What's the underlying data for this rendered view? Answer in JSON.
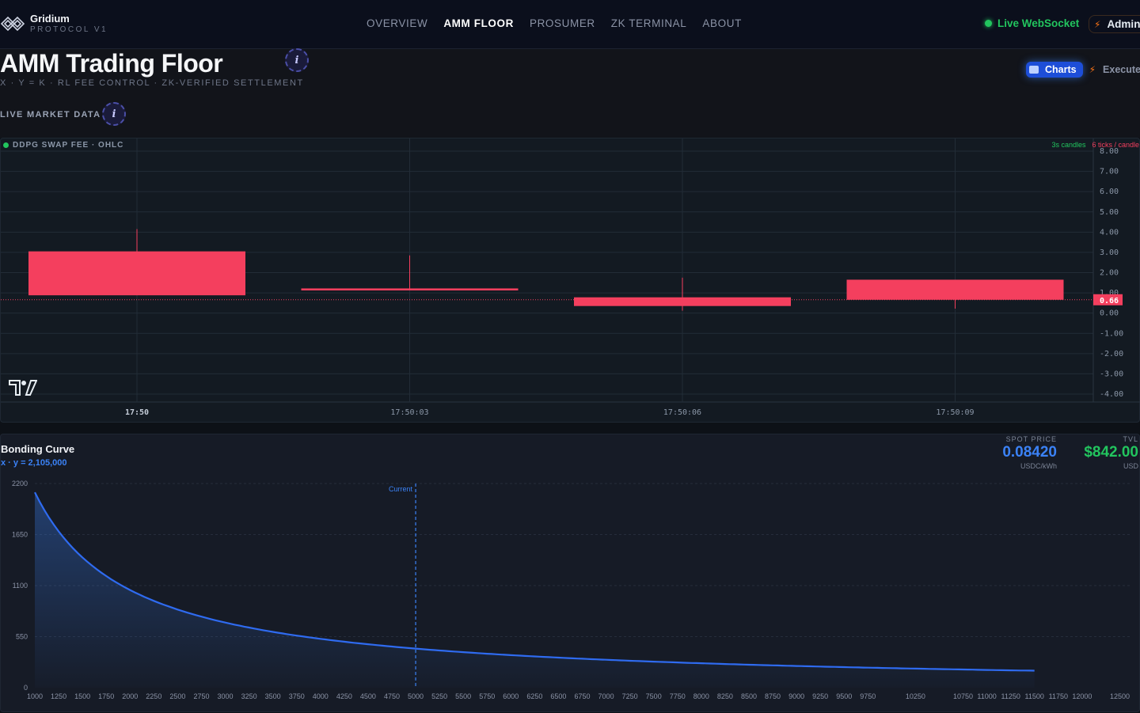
{
  "brand": {
    "name": "Gridium",
    "sub": "PROTOCOL V1"
  },
  "nav": [
    {
      "label": "OVERVIEW",
      "active": false
    },
    {
      "label": "AMM FLOOR",
      "active": true
    },
    {
      "label": "PROSUMER",
      "active": false
    },
    {
      "label": "ZK TERMINAL",
      "active": false
    },
    {
      "label": "ABOUT",
      "active": false
    }
  ],
  "status": {
    "ws_label": "Live WebSocket",
    "admin_label": "Admin"
  },
  "page": {
    "title": "AMM Trading Floor",
    "subtitle": "X · Y = K · RL FEE CONTROL · ZK-VERIFIED SETTLEMENT",
    "live_label": "LIVE MARKET DATA",
    "info_glyph": "i"
  },
  "view_toggle": {
    "charts": "Charts",
    "execute": "Execute"
  },
  "colors": {
    "up": "#22c55e",
    "down": "#f43f5e",
    "accent": "#3b82f6",
    "tvl": "#22c55e"
  },
  "candles": {
    "label": "DDPG SWAP FEE · OHLC",
    "tag_interval": "3s candles",
    "tag_ticks": "6 ticks / candle",
    "current_price": "0.66",
    "chart_data": {
      "type": "candlestick",
      "title": "DDPG SWAP FEE · OHLC",
      "x_ticks": [
        "17:50",
        "17:50:03",
        "17:50:06",
        "17:50:09"
      ],
      "y_ticks": [
        "8.00",
        "7.00",
        "6.00",
        "5.00",
        "4.00",
        "3.00",
        "2.00",
        "1.00",
        "0.00",
        "-1.00",
        "-2.00",
        "-3.00",
        "-4.00"
      ],
      "ylim": [
        -4,
        8
      ],
      "series": [
        {
          "t": "17:50",
          "open": 3.05,
          "high": 4.15,
          "low": 0.88,
          "close": 0.88
        },
        {
          "t": "17:50:03",
          "open": 1.22,
          "high": 2.85,
          "low": 1.12,
          "close": 1.12
        },
        {
          "t": "17:50:06",
          "open": 0.78,
          "high": 1.75,
          "low": 0.12,
          "close": 0.35
        },
        {
          "t": "17:50:09",
          "open": 1.65,
          "high": 1.65,
          "low": 0.22,
          "close": 0.66
        }
      ]
    }
  },
  "bonding": {
    "title": "Bonding Curve",
    "equation": "x · y = 2,105,000",
    "current_label": "Current",
    "spot": {
      "label": "SPOT PRICE",
      "value": "0.08420",
      "unit": "USDC/kWh"
    },
    "tvl": {
      "label": "TVL",
      "value": "$842.00",
      "unit": "USD"
    },
    "chart_data": {
      "type": "area",
      "k": 2105000,
      "x_range": [
        1000,
        11500
      ],
      "current_x": 5000,
      "ylim": [
        0,
        2200
      ],
      "y_ticks": [
        "2200",
        "1650",
        "1100",
        "550",
        "0"
      ],
      "x_ticks": [
        "1000",
        "1250",
        "1500",
        "1750",
        "2000",
        "2250",
        "2500",
        "2750",
        "3000",
        "3250",
        "3500",
        "3750",
        "4000",
        "4250",
        "4500",
        "4750",
        "5000",
        "5250",
        "5500",
        "5750",
        "6000",
        "6250",
        "6500",
        "6750",
        "7000",
        "7250",
        "7500",
        "7750",
        "8000",
        "8250",
        "8500",
        "8750",
        "9000",
        "9250",
        "9500",
        "9750",
        "10250",
        "10750",
        "11000",
        "11250",
        "11500",
        "11750",
        "12000",
        "12500"
      ]
    }
  }
}
